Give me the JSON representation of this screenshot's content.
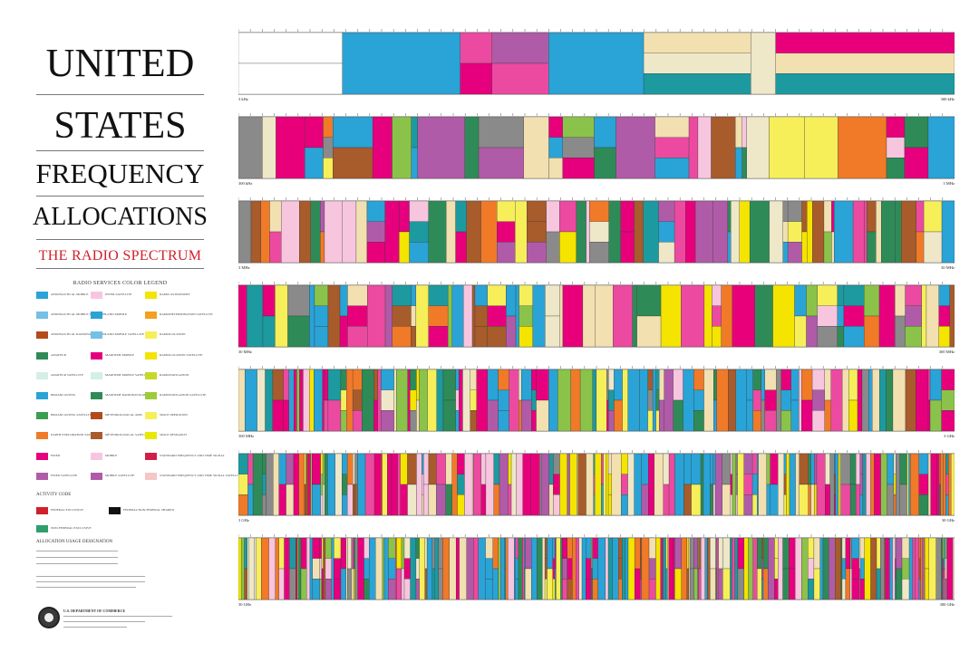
{
  "poster": {
    "title_lines": [
      "UNITED",
      "STATES",
      "FREQUENCY",
      "ALLOCATIONS"
    ],
    "subtitle": "THE RADIO SPECTRUM",
    "legend_title": "RADIO SERVICES COLOR LEGEND",
    "activity_code_title": "ACTIVITY CODE",
    "usage_title": "ALLOCATION USAGE DESIGNATION",
    "department": "U.S. DEPARTMENT OF COMMERCE"
  },
  "colors": {
    "aeronautical_mobile": "#2aa3d6",
    "aeronautical_radionavigation": "#2e8b57",
    "amateur": "#f2e0b0",
    "broadcasting": "#e6007e",
    "fixed": "#e8007b",
    "fixed_satellite": "#a85b2b",
    "land_mobile": "#f7c6de",
    "maritime_mobile": "#eee8c8",
    "mobile": "#ec4aa0",
    "mobile_satellite": "#b05ba8",
    "radiolocation": "#f4e400",
    "radionavigation": "#8bc34a",
    "satellite": "#f6ef5a",
    "space_research": "#2aa3d6",
    "gray": "#8a8a8a",
    "orange": "#f07a28",
    "teal": "#1c9aa0"
  },
  "legend": [
    {
      "label": "AERONAUTICAL MOBILE",
      "color": "#2aa3d6"
    },
    {
      "label": "AERONAUTICAL MOBILE SATELLITE",
      "color": "#74c0e6"
    },
    {
      "label": "AERONAUTICAL RADIONAVIGATION",
      "color": "#b24a1d"
    },
    {
      "label": "AMATEUR",
      "color": "#2e8b57"
    },
    {
      "label": "AMATEUR SATELLITE",
      "color": "#d4efe6"
    },
    {
      "label": "BROADCASTING",
      "color": "#2aa3d6"
    },
    {
      "label": "BROADCASTING SATELLITE",
      "color": "#3b9e52"
    },
    {
      "label": "EARTH EXPLORATION SATELLITE",
      "color": "#f07a28"
    },
    {
      "label": "FIXED",
      "color": "#e6007e"
    },
    {
      "label": "FIXED SATELLITE",
      "color": "#b05ba8"
    },
    {
      "label": "INTER-SATELLITE",
      "color": "#f7c6de"
    },
    {
      "label": "LAND MOBILE",
      "color": "#2aa3d6"
    },
    {
      "label": "LAND MOBILE SATELLITE",
      "color": "#74c0e6"
    },
    {
      "label": "MARITIME MOBILE",
      "color": "#e6007e"
    },
    {
      "label": "MARITIME MOBILE SATELLITE",
      "color": "#d4efe6"
    },
    {
      "label": "MARITIME RADIONAVIGATION",
      "color": "#2e8b57"
    },
    {
      "label": "METEOROLOGICAL AIDS",
      "color": "#b24a1d"
    },
    {
      "label": "METEOROLOGICAL SATELLITE",
      "color": "#a85b2b"
    },
    {
      "label": "MOBILE",
      "color": "#f7c6de"
    },
    {
      "label": "MOBILE SATELLITE",
      "color": "#b05ba8"
    },
    {
      "label": "RADIO ASTRONOMY",
      "color": "#f4e400"
    },
    {
      "label": "RADIODETERMINATION SATELLITE",
      "color": "#f4a020"
    },
    {
      "label": "RADIOLOCATION",
      "color": "#f6ef5a"
    },
    {
      "label": "RADIOLOCATION SATELLITE",
      "color": "#f4e400"
    },
    {
      "label": "RADIONAVIGATION",
      "color": "#c6d82a"
    },
    {
      "label": "RADIONAVIGATION SATELLITE",
      "color": "#9ecb3a"
    },
    {
      "label": "SPACE OPERATION",
      "color": "#f6ef5a"
    },
    {
      "label": "SPACE RESEARCH",
      "color": "#e8e800"
    },
    {
      "label": "STANDARD FREQUENCY AND TIME SIGNAL",
      "color": "#d11e48"
    },
    {
      "label": "STANDARD FREQUENCY AND TIME SIGNAL SATELLITE",
      "color": "#f4c6c6"
    }
  ],
  "activity_codes": [
    {
      "label": "FEDERAL EXCLUSIVE",
      "color": "#d0202a"
    },
    {
      "label": "FEDERAL/NON-FEDERAL SHARED",
      "color": "#111111"
    },
    {
      "label": "NON-FEDERAL EXCLUSIVE",
      "color": "#2e9e6a"
    }
  ],
  "bands": [
    {
      "start": "3 kHz",
      "end": "300 kHz"
    },
    {
      "start": "300 kHz",
      "end": "3 MHz"
    },
    {
      "start": "3 MHz",
      "end": "30 MHz"
    },
    {
      "start": "30 MHz",
      "end": "300 MHz"
    },
    {
      "start": "300 MHz",
      "end": "3 GHz"
    },
    {
      "start": "3 GHz",
      "end": "30 GHz"
    },
    {
      "start": "30 GHz",
      "end": "300 GHz"
    }
  ]
}
